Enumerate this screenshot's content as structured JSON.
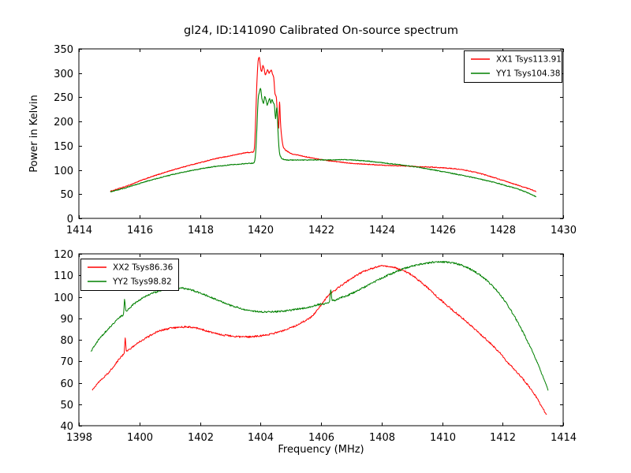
{
  "figure": {
    "title": "gl24, ID:141090 Calibrated On-source spectrum",
    "background": "#ffffff",
    "axis_color": "#000000"
  },
  "chart_data": [
    {
      "type": "line",
      "xlabel": "",
      "ylabel": "Power in Kelvin",
      "xlim": [
        1414,
        1430
      ],
      "ylim": [
        0,
        350
      ],
      "xticks": [
        1414,
        1416,
        1418,
        1420,
        1422,
        1424,
        1426,
        1428,
        1430
      ],
      "yticks": [
        0,
        50,
        100,
        150,
        200,
        250,
        300,
        350
      ],
      "grid": false,
      "legend": {
        "position": "upper-right",
        "entries": [
          {
            "label": "XX1 Tsys113.91",
            "color": "#ff0000"
          },
          {
            "label": "YY1 Tsys104.38",
            "color": "#008000"
          }
        ]
      },
      "series": [
        {
          "name": "XX1",
          "color": "#ff0000",
          "noise": 0.8,
          "points": [
            [
              1415.05,
              56
            ],
            [
              1415.3,
              61
            ],
            [
              1415.6,
              67
            ],
            [
              1416,
              77
            ],
            [
              1416.5,
              88
            ],
            [
              1417,
              98
            ],
            [
              1417.5,
              107
            ],
            [
              1418,
              115
            ],
            [
              1418.5,
              123
            ],
            [
              1419,
              129
            ],
            [
              1419.3,
              133
            ],
            [
              1419.6,
              136
            ],
            [
              1419.75,
              137
            ],
            [
              1419.8,
              146
            ],
            [
              1419.84,
              205
            ],
            [
              1419.88,
              278
            ],
            [
              1419.92,
              324
            ],
            [
              1419.96,
              332
            ],
            [
              1420.0,
              312
            ],
            [
              1420.04,
              303
            ],
            [
              1420.08,
              316
            ],
            [
              1420.12,
              309
            ],
            [
              1420.16,
              297
            ],
            [
              1420.2,
              301
            ],
            [
              1420.24,
              307
            ],
            [
              1420.28,
              300
            ],
            [
              1420.32,
              304
            ],
            [
              1420.36,
              306
            ],
            [
              1420.4,
              297
            ],
            [
              1420.44,
              289
            ],
            [
              1420.48,
              257
            ],
            [
              1420.52,
              251
            ],
            [
              1420.56,
              216
            ],
            [
              1420.6,
              186
            ],
            [
              1420.63,
              241
            ],
            [
              1420.66,
              199
            ],
            [
              1420.7,
              168
            ],
            [
              1420.74,
              151
            ],
            [
              1420.8,
              143
            ],
            [
              1420.9,
              138
            ],
            [
              1421,
              134
            ],
            [
              1421.3,
              130
            ],
            [
              1421.6,
              126
            ],
            [
              1422,
              121.5
            ],
            [
              1422.4,
              118
            ],
            [
              1422.8,
              115
            ],
            [
              1423.2,
              113
            ],
            [
              1423.6,
              111.5
            ],
            [
              1424,
              110
            ],
            [
              1424.4,
              109
            ],
            [
              1424.8,
              108
            ],
            [
              1425.2,
              107
            ],
            [
              1425.6,
              106
            ],
            [
              1426,
              104.5
            ],
            [
              1426.4,
              102.5
            ],
            [
              1426.8,
              99
            ],
            [
              1427.2,
              93.5
            ],
            [
              1427.6,
              86.5
            ],
            [
              1428,
              78.5
            ],
            [
              1428.4,
              70.5
            ],
            [
              1428.8,
              62.5
            ],
            [
              1429.1,
              56
            ]
          ]
        },
        {
          "name": "YY1",
          "color": "#008000",
          "noise": 0.8,
          "points": [
            [
              1415.05,
              55
            ],
            [
              1415.3,
              59
            ],
            [
              1415.6,
              64
            ],
            [
              1416,
              72
            ],
            [
              1416.5,
              81
            ],
            [
              1417,
              89
            ],
            [
              1417.5,
              96
            ],
            [
              1418,
              102
            ],
            [
              1418.5,
              107
            ],
            [
              1419,
              110.5
            ],
            [
              1419.3,
              112
            ],
            [
              1419.6,
              113.5
            ],
            [
              1419.78,
              114.5
            ],
            [
              1419.84,
              135
            ],
            [
              1419.88,
              185
            ],
            [
              1419.92,
              243
            ],
            [
              1419.96,
              260
            ],
            [
              1420.0,
              268
            ],
            [
              1420.05,
              246
            ],
            [
              1420.1,
              238
            ],
            [
              1420.14,
              252
            ],
            [
              1420.18,
              245
            ],
            [
              1420.22,
              234
            ],
            [
              1420.26,
              241
            ],
            [
              1420.3,
              247
            ],
            [
              1420.34,
              238
            ],
            [
              1420.38,
              245
            ],
            [
              1420.42,
              239
            ],
            [
              1420.46,
              233
            ],
            [
              1420.5,
              206
            ],
            [
              1420.54,
              229
            ],
            [
              1420.58,
              178
            ],
            [
              1420.62,
              140
            ],
            [
              1420.68,
              126
            ],
            [
              1420.76,
              122
            ],
            [
              1420.9,
              120.5
            ],
            [
              1421.4,
              120.5
            ],
            [
              1422,
              120.8
            ],
            [
              1422.6,
              121
            ],
            [
              1423,
              120.5
            ],
            [
              1423.4,
              119
            ],
            [
              1423.8,
              116.5
            ],
            [
              1424.2,
              113.5
            ],
            [
              1424.6,
              110.5
            ],
            [
              1425,
              107.5
            ],
            [
              1425.4,
              103.5
            ],
            [
              1425.8,
              99
            ],
            [
              1426.2,
              94.5
            ],
            [
              1426.6,
              89.5
            ],
            [
              1427,
              84.5
            ],
            [
              1427.4,
              79
            ],
            [
              1427.8,
              73
            ],
            [
              1428.2,
              66
            ],
            [
              1428.6,
              58.5
            ],
            [
              1429.1,
              45
            ]
          ]
        }
      ]
    },
    {
      "type": "line",
      "xlabel": "Frequency (MHz)",
      "ylabel": "",
      "xlim": [
        1398,
        1414
      ],
      "ylim": [
        40,
        120
      ],
      "xticks": [
        1398,
        1400,
        1402,
        1404,
        1406,
        1408,
        1410,
        1412,
        1414
      ],
      "yticks": [
        40,
        50,
        60,
        70,
        80,
        90,
        100,
        110,
        120
      ],
      "grid": false,
      "legend": {
        "position": "upper-left",
        "entries": [
          {
            "label": "XX2 Tsys86.36",
            "color": "#ff0000"
          },
          {
            "label": "YY2 Tsys98.82",
            "color": "#008000"
          }
        ]
      },
      "series": [
        {
          "name": "XX2",
          "color": "#ff0000",
          "noise": 0.4,
          "points": [
            [
              1398.45,
              57
            ],
            [
              1398.7,
              61
            ],
            [
              1399.0,
              65
            ],
            [
              1399.25,
              69.5
            ],
            [
              1399.45,
              72.8
            ],
            [
              1399.5,
              74
            ],
            [
              1399.53,
              81
            ],
            [
              1399.57,
              74.8
            ],
            [
              1399.8,
              77
            ],
            [
              1400.0,
              79
            ],
            [
              1400.3,
              81.5
            ],
            [
              1400.6,
              83.8
            ],
            [
              1400.9,
              85
            ],
            [
              1401.2,
              85.7
            ],
            [
              1401.5,
              86
            ],
            [
              1401.8,
              85.6
            ],
            [
              1402.1,
              84.6
            ],
            [
              1402.4,
              83.4
            ],
            [
              1402.7,
              82.4
            ],
            [
              1403.0,
              81.8
            ],
            [
              1403.3,
              81.4
            ],
            [
              1403.6,
              81.4
            ],
            [
              1403.9,
              81.7
            ],
            [
              1404.2,
              82.3
            ],
            [
              1404.5,
              83.2
            ],
            [
              1404.8,
              84.5
            ],
            [
              1405.1,
              86.2
            ],
            [
              1405.4,
              88.3
            ],
            [
              1405.7,
              91
            ],
            [
              1406.0,
              96
            ],
            [
              1406.2,
              100
            ],
            [
              1406.5,
              103.5
            ],
            [
              1406.9,
              107.5
            ],
            [
              1407.3,
              111
            ],
            [
              1407.7,
              113.3
            ],
            [
              1408.0,
              114.3
            ],
            [
              1408.3,
              114
            ],
            [
              1408.6,
              112.8
            ],
            [
              1408.9,
              111
            ],
            [
              1409.2,
              108
            ],
            [
              1409.5,
              104.5
            ],
            [
              1409.8,
              100.5
            ],
            [
              1410.1,
              96.8
            ],
            [
              1410.4,
              93.2
            ],
            [
              1410.7,
              89.7
            ],
            [
              1411.0,
              86
            ],
            [
              1411.3,
              82.2
            ],
            [
              1411.6,
              78.3
            ],
            [
              1411.9,
              74
            ],
            [
              1412.2,
              69
            ],
            [
              1412.5,
              64.5
            ],
            [
              1412.8,
              59.5
            ],
            [
              1413.1,
              53.5
            ],
            [
              1413.45,
              45
            ]
          ]
        },
        {
          "name": "YY2",
          "color": "#008000",
          "noise": 0.4,
          "points": [
            [
              1398.4,
              74.5
            ],
            [
              1398.6,
              79
            ],
            [
              1398.8,
              82.5
            ],
            [
              1399.0,
              85.5
            ],
            [
              1399.2,
              88.3
            ],
            [
              1399.4,
              91
            ],
            [
              1399.48,
              92.5
            ],
            [
              1399.51,
              99
            ],
            [
              1399.55,
              93.5
            ],
            [
              1399.8,
              96.5
            ],
            [
              1400.0,
              98.5
            ],
            [
              1400.3,
              100.8
            ],
            [
              1400.6,
              102.5
            ],
            [
              1400.9,
              103.6
            ],
            [
              1401.2,
              104.3
            ],
            [
              1401.5,
              103.9
            ],
            [
              1401.8,
              102.8
            ],
            [
              1402.1,
              101.3
            ],
            [
              1402.4,
              99.5
            ],
            [
              1402.7,
              97.8
            ],
            [
              1403.0,
              96.1
            ],
            [
              1403.3,
              94.8
            ],
            [
              1403.6,
              93.8
            ],
            [
              1403.9,
              93.2
            ],
            [
              1404.2,
              93
            ],
            [
              1404.5,
              93.1
            ],
            [
              1404.8,
              93.4
            ],
            [
              1405.1,
              94
            ],
            [
              1405.4,
              94.7
            ],
            [
              1405.7,
              95.5
            ],
            [
              1406.0,
              96.6
            ],
            [
              1406.28,
              97.8
            ],
            [
              1406.32,
              103.3
            ],
            [
              1406.37,
              98.2
            ],
            [
              1406.6,
              99.3
            ],
            [
              1406.9,
              100.8
            ],
            [
              1407.2,
              102.8
            ],
            [
              1407.5,
              105
            ],
            [
              1407.8,
              107.2
            ],
            [
              1408.1,
              109.3
            ],
            [
              1408.4,
              111.2
            ],
            [
              1408.7,
              112.9
            ],
            [
              1409.0,
              114.2
            ],
            [
              1409.3,
              115.2
            ],
            [
              1409.6,
              115.9
            ],
            [
              1409.9,
              116.3
            ],
            [
              1410.2,
              116.1
            ],
            [
              1410.5,
              115.3
            ],
            [
              1410.8,
              113.8
            ],
            [
              1411.1,
              111.5
            ],
            [
              1411.4,
              108.5
            ],
            [
              1411.7,
              104.5
            ],
            [
              1412.0,
              99.5
            ],
            [
              1412.3,
              93
            ],
            [
              1412.6,
              85.5
            ],
            [
              1412.9,
              77
            ],
            [
              1413.2,
              67.5
            ],
            [
              1413.5,
              56.5
            ]
          ]
        }
      ]
    }
  ]
}
